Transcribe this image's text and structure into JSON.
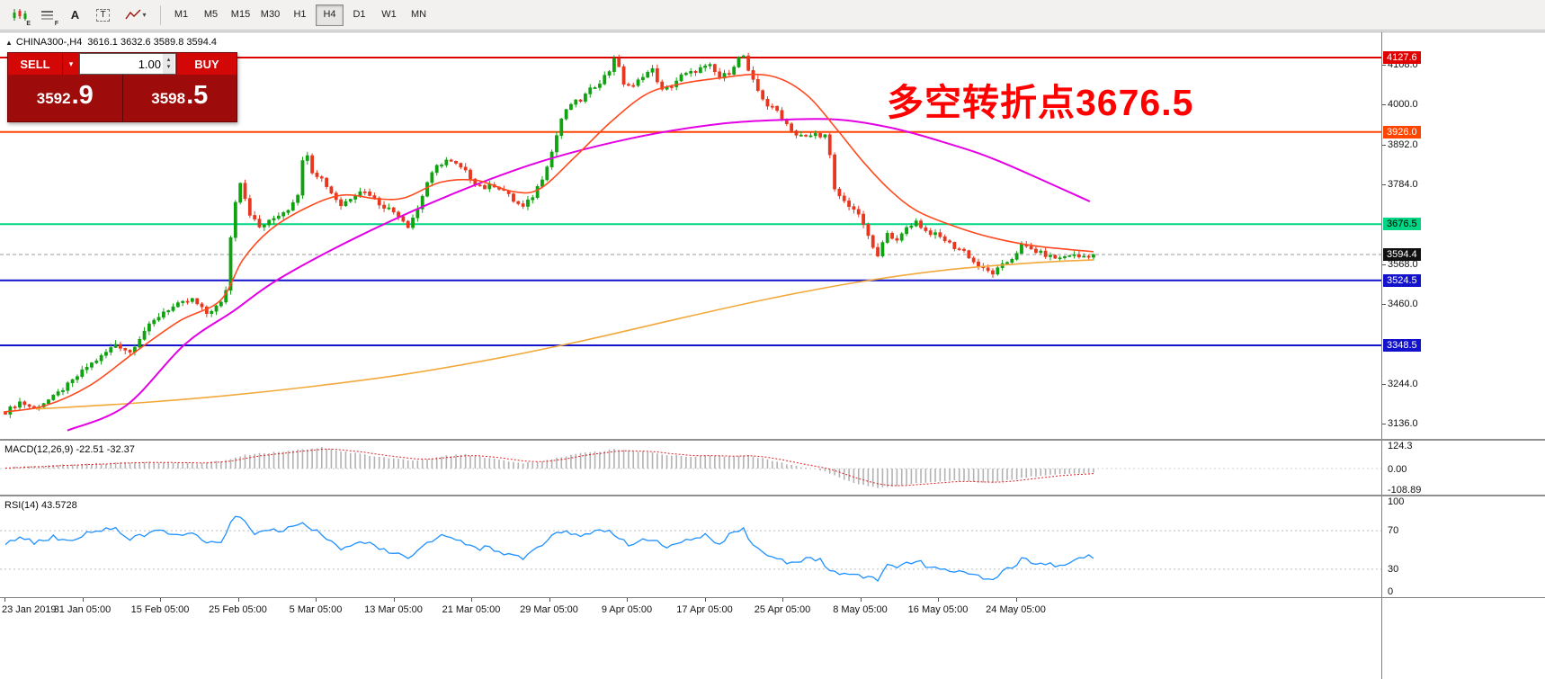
{
  "toolbar": {
    "tools": [
      {
        "sub": "E"
      },
      {
        "sub": "F"
      },
      {
        "glyph": "A"
      },
      {
        "glyph": "T"
      },
      {}
    ],
    "timeframes": [
      "M1",
      "M5",
      "M15",
      "M30",
      "H1",
      "H4",
      "D1",
      "W1",
      "MN"
    ],
    "active_timeframe": "H4"
  },
  "icons": {
    "collapse": "▲",
    "caret_down": "▾",
    "caret_up": "▴"
  },
  "chart": {
    "symbol": "CHINA300-,H4",
    "ohlc_text": "3616.1 3632.6 3589.8 3594.4",
    "annotation": {
      "text": "多空转折点3676.5",
      "color": "#ff0000"
    }
  },
  "trade_panel": {
    "sell_label": "SELL",
    "buy_label": "BUY",
    "volume": "1.00",
    "sell_price_main": "3592",
    "sell_price_big": ".9",
    "buy_price_main": "3598",
    "buy_price_big": ".5"
  },
  "price_axis": {
    "ticks": [
      "4108.0",
      "4000.0",
      "3892.0",
      "3784.0",
      "3568.0",
      "3460.0",
      "3244.0",
      "3136.0"
    ],
    "badges": [
      {
        "text": "4127.6",
        "price": 4127.6,
        "bg": "#e00000",
        "fg": "#ffffff"
      },
      {
        "text": "3926.0",
        "price": 3926.0,
        "bg": "#ff4500",
        "fg": "#ffffff"
      },
      {
        "text": "3676.5",
        "price": 3676.5,
        "bg": "#00d584",
        "fg": "#000000"
      },
      {
        "text": "3594.4",
        "price": 3594.4,
        "bg": "#101010",
        "fg": "#ffffff"
      },
      {
        "text": "3524.5",
        "price": 3524.5,
        "bg": "#1212cc",
        "fg": "#ffffff"
      },
      {
        "text": "3348.5",
        "price": 3348.5,
        "bg": "#1212cc",
        "fg": "#ffffff"
      }
    ]
  },
  "time_axis": {
    "labels": [
      "23 Jan 2019",
      "31 Jan 05:00",
      "15 Feb 05:00",
      "25 Feb 05:00",
      "5 Mar 05:00",
      "13 Mar 05:00",
      "21 Mar 05:00",
      "29 Mar 05:00",
      "9 Apr 05:00",
      "17 Apr 05:00",
      "25 Apr 05:00",
      "8 May 05:00",
      "16 May 05:00",
      "24 May 05:00"
    ]
  },
  "indicators": {
    "macd": {
      "label": "MACD(12,26,9) -22.51 -32.37",
      "axis": [
        124.3,
        0,
        -108.89
      ],
      "axis_text": [
        "124.3",
        "0.00",
        "-108.89"
      ]
    },
    "rsi": {
      "label": "RSI(14) 43.5728",
      "axis": [
        100,
        70,
        30,
        0
      ],
      "axis_text": [
        "100",
        "70",
        "30",
        "0"
      ]
    }
  },
  "chart_data": {
    "type": "candlestick",
    "bars": 228,
    "current_price": 3594.4,
    "colors": {
      "up": "#11a211",
      "down": "#e8371f",
      "ma_fast": "#ff4a1f",
      "ma_mid": "#e400e4",
      "ma_slow": "#f2a93b",
      "macd_bar": "#b2b2b2",
      "macd_signal": "#dd2222",
      "rsi": "#1e90ff",
      "price_line": "#9a9a9a"
    },
    "hlines": [
      {
        "price": 4127.6,
        "color": "#e00000",
        "width": 2
      },
      {
        "price": 3926.0,
        "color": "#ff4500",
        "width": 2
      },
      {
        "price": 3676.5,
        "color": "#00d584",
        "width": 2
      },
      {
        "price": 3524.5,
        "color": "#1212cc",
        "width": 2
      },
      {
        "price": 3348.5,
        "color": "#1212cc",
        "width": 2
      }
    ],
    "price_anchors": [
      [
        0,
        3168
      ],
      [
        3,
        3195
      ],
      [
        6,
        3178
      ],
      [
        10,
        3208
      ],
      [
        14,
        3252
      ],
      [
        17,
        3290
      ],
      [
        20,
        3318
      ],
      [
        23,
        3352
      ],
      [
        26,
        3330
      ],
      [
        29,
        3388
      ],
      [
        33,
        3440
      ],
      [
        36,
        3458
      ],
      [
        39,
        3472
      ],
      [
        42,
        3435
      ],
      [
        45,
        3462
      ],
      [
        46,
        3500
      ],
      [
        47,
        3640
      ],
      [
        48,
        3740
      ],
      [
        49,
        3792
      ],
      [
        51,
        3705
      ],
      [
        53,
        3668
      ],
      [
        55,
        3683
      ],
      [
        57,
        3702
      ],
      [
        59,
        3718
      ],
      [
        61,
        3760
      ],
      [
        62,
        3845
      ],
      [
        63,
        3868
      ],
      [
        64,
        3820
      ],
      [
        66,
        3800
      ],
      [
        68,
        3762
      ],
      [
        70,
        3728
      ],
      [
        72,
        3748
      ],
      [
        74,
        3768
      ],
      [
        76,
        3758
      ],
      [
        78,
        3732
      ],
      [
        80,
        3718
      ],
      [
        82,
        3702
      ],
      [
        84,
        3672
      ],
      [
        86,
        3718
      ],
      [
        88,
        3790
      ],
      [
        90,
        3832
      ],
      [
        92,
        3850
      ],
      [
        94,
        3838
      ],
      [
        96,
        3818
      ],
      [
        98,
        3788
      ],
      [
        100,
        3775
      ],
      [
        102,
        3782
      ],
      [
        104,
        3768
      ],
      [
        106,
        3740
      ],
      [
        108,
        3722
      ],
      [
        110,
        3752
      ],
      [
        112,
        3802
      ],
      [
        114,
        3872
      ],
      [
        116,
        3962
      ],
      [
        118,
        4002
      ],
      [
        120,
        4012
      ],
      [
        122,
        4040
      ],
      [
        124,
        4062
      ],
      [
        126,
        4092
      ],
      [
        127,
        4128
      ],
      [
        128,
        4098
      ],
      [
        129,
        4058
      ],
      [
        131,
        4048
      ],
      [
        133,
        4080
      ],
      [
        135,
        4094
      ],
      [
        137,
        4038
      ],
      [
        139,
        4052
      ],
      [
        141,
        4078
      ],
      [
        143,
        4086
      ],
      [
        145,
        4098
      ],
      [
        147,
        4104
      ],
      [
        149,
        4072
      ],
      [
        151,
        4088
      ],
      [
        153,
        4126
      ],
      [
        154,
        4132
      ],
      [
        155,
        4088
      ],
      [
        157,
        4038
      ],
      [
        159,
        3998
      ],
      [
        161,
        3984
      ],
      [
        163,
        3948
      ],
      [
        165,
        3918
      ],
      [
        167,
        3912
      ],
      [
        169,
        3920
      ],
      [
        171,
        3916
      ],
      [
        172,
        3860
      ],
      [
        173,
        3768
      ],
      [
        175,
        3738
      ],
      [
        177,
        3718
      ],
      [
        179,
        3678
      ],
      [
        180,
        3640
      ],
      [
        182,
        3588
      ],
      [
        184,
        3658
      ],
      [
        186,
        3628
      ],
      [
        188,
        3668
      ],
      [
        190,
        3684
      ],
      [
        192,
        3658
      ],
      [
        194,
        3648
      ],
      [
        196,
        3634
      ],
      [
        198,
        3614
      ],
      [
        200,
        3604
      ],
      [
        202,
        3574
      ],
      [
        204,
        3554
      ],
      [
        206,
        3544
      ],
      [
        208,
        3564
      ],
      [
        210,
        3584
      ],
      [
        212,
        3618
      ],
      [
        214,
        3608
      ],
      [
        216,
        3598
      ],
      [
        218,
        3588
      ],
      [
        220,
        3584
      ],
      [
        222,
        3594
      ],
      [
        224,
        3588
      ],
      [
        227,
        3594
      ]
    ],
    "ma_fast_anchors": [
      [
        4,
        3168
      ],
      [
        50,
        3185
      ],
      [
        100,
        3240
      ],
      [
        150,
        3330
      ],
      [
        200,
        3415
      ],
      [
        245,
        3470
      ],
      [
        270,
        3580
      ],
      [
        300,
        3660
      ],
      [
        340,
        3720
      ],
      [
        380,
        3755
      ],
      [
        420,
        3745
      ],
      [
        450,
        3748
      ],
      [
        490,
        3790
      ],
      [
        530,
        3795
      ],
      [
        570,
        3765
      ],
      [
        600,
        3772
      ],
      [
        640,
        3860
      ],
      [
        680,
        3955
      ],
      [
        720,
        4030
      ],
      [
        760,
        4058
      ],
      [
        800,
        4072
      ],
      [
        840,
        4082
      ],
      [
        870,
        4068
      ],
      [
        900,
        4020
      ],
      [
        930,
        3935
      ],
      [
        960,
        3845
      ],
      [
        990,
        3768
      ],
      [
        1020,
        3712
      ],
      [
        1060,
        3672
      ],
      [
        1100,
        3642
      ],
      [
        1150,
        3618
      ],
      [
        1216,
        3602
      ]
    ],
    "ma_mid_anchors": [
      [
        75,
        3118
      ],
      [
        140,
        3185
      ],
      [
        205,
        3350
      ],
      [
        260,
        3442
      ],
      [
        310,
        3528
      ],
      [
        400,
        3645
      ],
      [
        500,
        3755
      ],
      [
        600,
        3845
      ],
      [
        700,
        3908
      ],
      [
        790,
        3945
      ],
      [
        860,
        3958
      ],
      [
        930,
        3960
      ],
      [
        990,
        3938
      ],
      [
        1050,
        3898
      ],
      [
        1110,
        3848
      ],
      [
        1212,
        3738
      ]
    ],
    "ma_slow_anchors": [
      [
        40,
        3176
      ],
      [
        150,
        3192
      ],
      [
        250,
        3212
      ],
      [
        350,
        3238
      ],
      [
        450,
        3270
      ],
      [
        550,
        3312
      ],
      [
        650,
        3362
      ],
      [
        750,
        3418
      ],
      [
        850,
        3472
      ],
      [
        950,
        3518
      ],
      [
        1050,
        3552
      ],
      [
        1150,
        3572
      ],
      [
        1216,
        3580
      ]
    ],
    "macd_anchors": [
      [
        0,
        6
      ],
      [
        8,
        16
      ],
      [
        16,
        24
      ],
      [
        24,
        30
      ],
      [
        32,
        34
      ],
      [
        40,
        28
      ],
      [
        46,
        42
      ],
      [
        50,
        72
      ],
      [
        56,
        86
      ],
      [
        62,
        102
      ],
      [
        66,
        112
      ],
      [
        70,
        94
      ],
      [
        76,
        70
      ],
      [
        82,
        50
      ],
      [
        86,
        44
      ],
      [
        92,
        68
      ],
      [
        96,
        76
      ],
      [
        100,
        60
      ],
      [
        104,
        44
      ],
      [
        108,
        30
      ],
      [
        112,
        36
      ],
      [
        116,
        62
      ],
      [
        120,
        80
      ],
      [
        124,
        92
      ],
      [
        127,
        102
      ],
      [
        131,
        94
      ],
      [
        135,
        84
      ],
      [
        139,
        70
      ],
      [
        143,
        64
      ],
      [
        147,
        70
      ],
      [
        151,
        64
      ],
      [
        155,
        70
      ],
      [
        159,
        48
      ],
      [
        163,
        24
      ],
      [
        167,
        4
      ],
      [
        171,
        -12
      ],
      [
        175,
        -62
      ],
      [
        179,
        -88
      ],
      [
        182,
        -102
      ],
      [
        186,
        -96
      ],
      [
        190,
        -80
      ],
      [
        194,
        -70
      ],
      [
        198,
        -64
      ],
      [
        202,
        -70
      ],
      [
        206,
        -76
      ],
      [
        210,
        -58
      ],
      [
        214,
        -44
      ],
      [
        218,
        -34
      ],
      [
        222,
        -30
      ],
      [
        227,
        -22.5
      ]
    ],
    "rsi_anchors": [
      [
        0,
        58
      ],
      [
        3,
        64
      ],
      [
        6,
        57
      ],
      [
        10,
        63
      ],
      [
        14,
        60
      ],
      [
        17,
        67
      ],
      [
        20,
        70
      ],
      [
        23,
        73
      ],
      [
        26,
        62
      ],
      [
        29,
        66
      ],
      [
        33,
        70
      ],
      [
        36,
        66
      ],
      [
        39,
        68
      ],
      [
        42,
        57
      ],
      [
        45,
        60
      ],
      [
        48,
        86
      ],
      [
        50,
        78
      ],
      [
        52,
        68
      ],
      [
        54,
        71
      ],
      [
        57,
        69
      ],
      [
        59,
        72
      ],
      [
        62,
        78
      ],
      [
        64,
        71
      ],
      [
        66,
        66
      ],
      [
        68,
        57
      ],
      [
        70,
        51
      ],
      [
        72,
        54
      ],
      [
        74,
        59
      ],
      [
        76,
        56
      ],
      [
        78,
        50
      ],
      [
        80,
        48
      ],
      [
        82,
        45
      ],
      [
        84,
        40
      ],
      [
        86,
        50
      ],
      [
        88,
        59
      ],
      [
        90,
        63
      ],
      [
        92,
        65
      ],
      [
        94,
        61
      ],
      [
        96,
        56
      ],
      [
        98,
        51
      ],
      [
        100,
        53
      ],
      [
        102,
        50
      ],
      [
        104,
        46
      ],
      [
        106,
        43
      ],
      [
        108,
        41
      ],
      [
        110,
        49
      ],
      [
        112,
        56
      ],
      [
        114,
        63
      ],
      [
        116,
        69
      ],
      [
        118,
        66
      ],
      [
        120,
        64
      ],
      [
        122,
        67
      ],
      [
        124,
        69
      ],
      [
        126,
        73
      ],
      [
        128,
        61
      ],
      [
        130,
        56
      ],
      [
        132,
        59
      ],
      [
        134,
        62
      ],
      [
        136,
        60
      ],
      [
        138,
        53
      ],
      [
        140,
        56
      ],
      [
        142,
        61
      ],
      [
        144,
        63
      ],
      [
        146,
        66
      ],
      [
        148,
        56
      ],
      [
        150,
        61
      ],
      [
        152,
        69
      ],
      [
        154,
        71
      ],
      [
        156,
        53
      ],
      [
        158,
        46
      ],
      [
        160,
        43
      ],
      [
        162,
        39
      ],
      [
        164,
        36
      ],
      [
        166,
        38
      ],
      [
        168,
        41
      ],
      [
        170,
        39
      ],
      [
        172,
        28
      ],
      [
        174,
        24
      ],
      [
        176,
        26
      ],
      [
        178,
        24
      ],
      [
        180,
        22
      ],
      [
        182,
        20
      ],
      [
        184,
        33
      ],
      [
        186,
        30
      ],
      [
        188,
        36
      ],
      [
        190,
        39
      ],
      [
        192,
        34
      ],
      [
        194,
        33
      ],
      [
        196,
        31
      ],
      [
        198,
        29
      ],
      [
        200,
        28
      ],
      [
        202,
        24
      ],
      [
        204,
        22
      ],
      [
        206,
        21
      ],
      [
        208,
        27
      ],
      [
        210,
        32
      ],
      [
        212,
        40
      ],
      [
        214,
        38
      ],
      [
        216,
        37
      ],
      [
        218,
        35
      ],
      [
        220,
        34
      ],
      [
        222,
        38
      ],
      [
        224,
        41
      ],
      [
        227,
        43.6
      ]
    ]
  }
}
